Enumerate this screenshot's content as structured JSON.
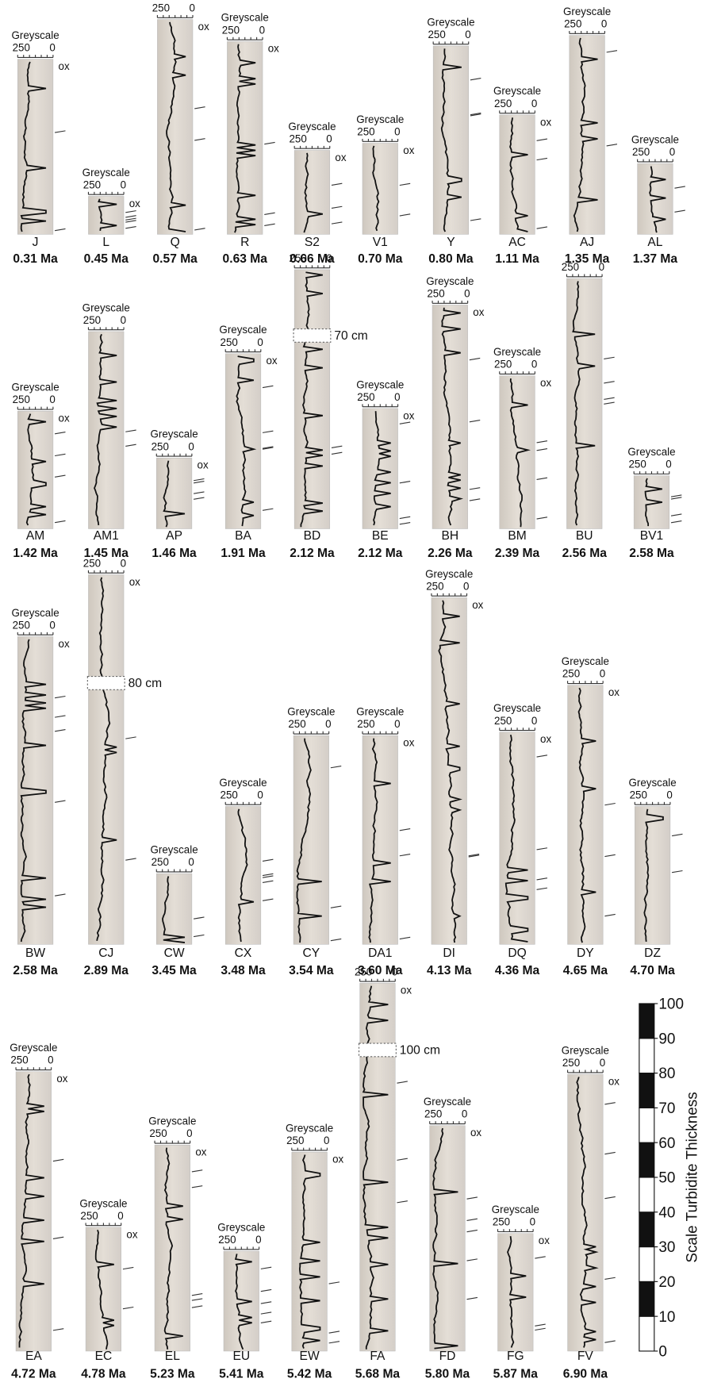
{
  "axis_title": "Greyscale",
  "axis_ticks": [
    "250",
    "0"
  ],
  "oxidation_label": "ox",
  "cores": [
    {
      "name": "J",
      "age": "0.31 Ma",
      "header": true,
      "ox": true
    },
    {
      "name": "L",
      "age": "0.45 Ma",
      "header": true,
      "ox": true
    },
    {
      "name": "Q",
      "age": "0.57 Ma",
      "header": false,
      "ox": true
    },
    {
      "name": "R",
      "age": "0.63 Ma",
      "header": true,
      "ox": true
    },
    {
      "name": "S2",
      "age": "0.66 Ma",
      "header": true,
      "ox": true
    },
    {
      "name": "V1",
      "age": "0.70 Ma",
      "header": true,
      "ox": true
    },
    {
      "name": "Y",
      "age": "0.80 Ma",
      "header": true,
      "ox": false
    },
    {
      "name": "AC",
      "age": "1.11 Ma",
      "header": true,
      "ox": true
    },
    {
      "name": "AJ",
      "age": "1.35 Ma",
      "header": true,
      "ox": false
    },
    {
      "name": "AL",
      "age": "1.37 Ma",
      "header": true,
      "ox": false
    },
    {
      "name": "AM",
      "age": "1.42 Ma",
      "header": true,
      "ox": true
    },
    {
      "name": "AM1",
      "age": "1.45 Ma",
      "header": true,
      "ox": false
    },
    {
      "name": "AP",
      "age": "1.46 Ma",
      "header": true,
      "ox": true
    },
    {
      "name": "BA",
      "age": "1.91 Ma",
      "header": true,
      "ox": true
    },
    {
      "name": "BD",
      "age": "2.12 Ma",
      "header": false,
      "ox": false,
      "gap": "70 cm"
    },
    {
      "name": "BE",
      "age": "2.12 Ma",
      "header": true,
      "ox": true
    },
    {
      "name": "BH",
      "age": "2.26 Ma",
      "header": true,
      "ox": true
    },
    {
      "name": "BM",
      "age": "2.39 Ma",
      "header": true,
      "ox": true
    },
    {
      "name": "BU",
      "age": "2.56 Ma",
      "header": false,
      "ox": false
    },
    {
      "name": "BV1",
      "age": "2.58 Ma",
      "header": true,
      "ox": false
    },
    {
      "name": "BW",
      "age": "2.58 Ma",
      "header": true,
      "ox": true
    },
    {
      "name": "CJ",
      "age": "2.89 Ma",
      "header": false,
      "ox": true,
      "gap": "80 cm"
    },
    {
      "name": "CW",
      "age": "3.45 Ma",
      "header": true,
      "ox": false
    },
    {
      "name": "CX",
      "age": "3.48 Ma",
      "header": true,
      "ox": false
    },
    {
      "name": "CY",
      "age": "3.54 Ma",
      "header": true,
      "ox": false
    },
    {
      "name": "DA1",
      "age": "3.60 Ma",
      "header": true,
      "ox": true
    },
    {
      "name": "DI",
      "age": "4.13 Ma",
      "header": true,
      "ox": true
    },
    {
      "name": "DQ",
      "age": "4.36 Ma",
      "header": true,
      "ox": true
    },
    {
      "name": "DY",
      "age": "4.65 Ma",
      "header": true,
      "ox": true
    },
    {
      "name": "DZ",
      "age": "4.70 Ma",
      "header": true,
      "ox": false
    },
    {
      "name": "EA",
      "age": "4.72 Ma",
      "header": true,
      "ox": true
    },
    {
      "name": "EC",
      "age": "4.78 Ma",
      "header": true,
      "ox": true
    },
    {
      "name": "EL",
      "age": "5.23 Ma",
      "header": true,
      "ox": true
    },
    {
      "name": "EU",
      "age": "5.41 Ma",
      "header": true,
      "ox": false
    },
    {
      "name": "EW",
      "age": "5.42 Ma",
      "header": true,
      "ox": true
    },
    {
      "name": "FA",
      "age": "5.68 Ma",
      "header": false,
      "ox": true,
      "gap": "100 cm"
    },
    {
      "name": "FD",
      "age": "5.80 Ma",
      "header": true,
      "ox": true
    },
    {
      "name": "FG",
      "age": "5.87 Ma",
      "header": true,
      "ox": true
    },
    {
      "name": "FV",
      "age": "6.90 Ma",
      "header": true,
      "ox": true
    }
  ],
  "scale": {
    "title": "Scale Turbidite Thickness",
    "ticks": [
      0,
      10,
      20,
      30,
      40,
      50,
      60,
      70,
      80,
      90,
      100
    ]
  }
}
